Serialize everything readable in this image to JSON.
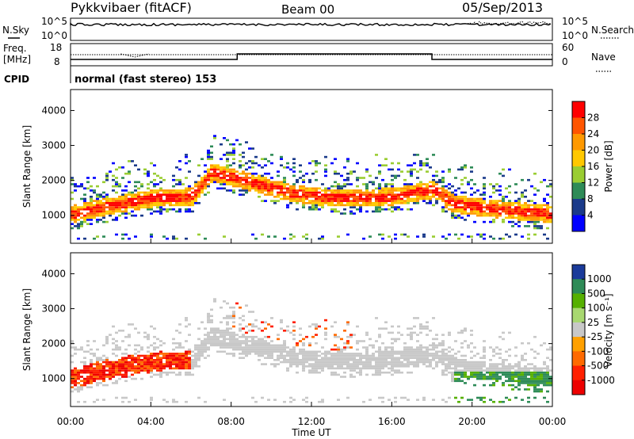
{
  "header": {
    "title": "Pykkvibaer (fitACF)",
    "beam": "Beam 00",
    "date": "05/Sep/2013"
  },
  "top_panels": {
    "nsky_label": "N.Sky",
    "nsky_ticks": [
      "10^5",
      "10^0"
    ],
    "nsearch_label": "N.Search",
    "nsearch_ticks": [
      "10^5",
      "10^0"
    ],
    "freq_label": "Freq.",
    "freq_unit": "[MHz]",
    "freq_ticks": [
      "18",
      "8"
    ],
    "nave_label": "Nave",
    "nave_ticks": [
      "60",
      "0"
    ],
    "cpid_label": "CPID",
    "cpid_text": "normal (fast stereo) 153"
  },
  "chart_data": [
    {
      "type": "heatmap",
      "name": "power",
      "ylabel": "Slant Range [km]",
      "ylim": [
        200,
        4600
      ],
      "yticks": [
        "1000",
        "2000",
        "3000",
        "4000"
      ],
      "ytick_values": [
        1000,
        2000,
        3000,
        4000
      ],
      "xlim_hours": [
        0,
        24
      ],
      "colorbar_label": "Power [dB]",
      "colorbar_ticks": [
        "28",
        "24",
        "20",
        "16",
        "12",
        "8",
        "4"
      ],
      "colorbar_colors": [
        "#ff0000",
        "#ff5500",
        "#ff9900",
        "#ffc800",
        "#9acd32",
        "#2e8b57",
        "#1a3a8a",
        "#0000ff"
      ],
      "band_center_km": [
        [
          0,
          1000
        ],
        [
          2,
          1250
        ],
        [
          4,
          1450
        ],
        [
          6,
          1500
        ],
        [
          7,
          2200
        ],
        [
          9,
          1900
        ],
        [
          11,
          1600
        ],
        [
          13,
          1450
        ],
        [
          16,
          1500
        ],
        [
          18,
          1700
        ],
        [
          19,
          1300
        ],
        [
          21,
          1150
        ],
        [
          24,
          1000
        ]
      ]
    },
    {
      "type": "heatmap",
      "name": "velocity",
      "ylabel": "Slant Range [km]",
      "ylim": [
        200,
        4600
      ],
      "yticks": [
        "1000",
        "2000",
        "3000",
        "4000"
      ],
      "ytick_values": [
        1000,
        2000,
        3000,
        4000
      ],
      "xlim_hours": [
        0,
        24
      ],
      "colorbar_label": "Velocity [m s⁻¹]",
      "colorbar_ticks": [
        "1000",
        "500",
        "100",
        "25",
        "-25",
        "-100",
        "-500",
        "-1000"
      ],
      "colorbar_colors": [
        "#1a3a9a",
        "#2e8b57",
        "#56b000",
        "#a8d870",
        "#c8c8c8",
        "#ffa000",
        "#ff6a00",
        "#ff2000",
        "#ee0000"
      ]
    }
  ],
  "xaxis": {
    "ticks": [
      "00:00",
      "04:00",
      "08:00",
      "12:00",
      "16:00",
      "20:00",
      "00:00"
    ],
    "tick_hours": [
      0,
      4,
      8,
      12,
      16,
      20,
      24
    ],
    "label": "Time UT"
  }
}
